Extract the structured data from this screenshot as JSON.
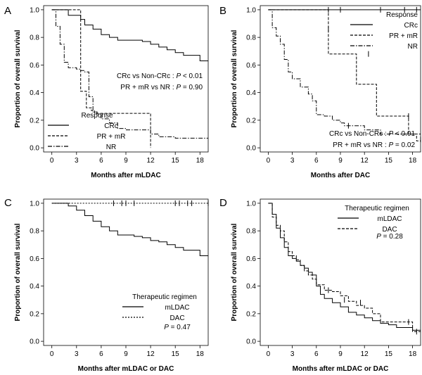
{
  "chart_data": [
    {
      "panel": "A",
      "type": "line",
      "title": "",
      "xlabel": "Months after mLDAC",
      "ylabel": "Proportion of overall survival",
      "xlim": [
        -1,
        19
      ],
      "ylim": [
        -0.03,
        1.03
      ],
      "xticks": [
        0,
        3,
        6,
        9,
        12,
        15,
        18
      ],
      "yticks": [
        0.0,
        0.2,
        0.4,
        0.6,
        0.8,
        1.0
      ],
      "ytick_labels": [
        "0.0",
        "0.2",
        "0.4",
        "0.6",
        "0.8",
        "1.0"
      ],
      "series": [
        {
          "name": "CRc",
          "style": "solid",
          "x": [
            0,
            2,
            3.5,
            4,
            5,
            6,
            7,
            8,
            9,
            10,
            11,
            12,
            13,
            14,
            15,
            16,
            18,
            19
          ],
          "y": [
            1.0,
            0.96,
            0.93,
            0.89,
            0.86,
            0.82,
            0.8,
            0.78,
            0.78,
            0.78,
            0.77,
            0.75,
            0.73,
            0.71,
            0.69,
            0.67,
            0.63,
            0.63
          ]
        },
        {
          "name": "PR + mR",
          "style": "dashed",
          "x": [
            0,
            3.2,
            3.5,
            4.2,
            4.8,
            5.2,
            12,
            12
          ],
          "y": [
            1.0,
            1.0,
            0.41,
            0.29,
            0.27,
            0.25,
            0.25,
            0.0
          ]
        },
        {
          "name": "NR",
          "style": "dashdot",
          "x": [
            0,
            0.5,
            1,
            1.5,
            2,
            3,
            3.5,
            4,
            4.5,
            5,
            5.5,
            6,
            7,
            8,
            9,
            12,
            13,
            15,
            19
          ],
          "y": [
            1.0,
            0.88,
            0.75,
            0.62,
            0.58,
            0.57,
            0.56,
            0.55,
            0.37,
            0.26,
            0.24,
            0.21,
            0.18,
            0.14,
            0.13,
            0.1,
            0.08,
            0.07,
            0.07
          ]
        }
      ],
      "censor_marks": [],
      "legend": {
        "title": "Response",
        "position": "bottom-left"
      },
      "annotations": [
        {
          "label": "CRc vs Non-CRc : ",
          "pvar": "P",
          "pval": " < 0.01"
        },
        {
          "label": "PR + mR vs NR : ",
          "pvar": "P",
          "pval": " = 0.90"
        }
      ]
    },
    {
      "panel": "B",
      "type": "line",
      "title": "",
      "xlabel": "Months after DAC",
      "ylabel": "Proportion of overall survival",
      "xlim": [
        -1,
        19
      ],
      "ylim": [
        -0.03,
        1.03
      ],
      "xticks": [
        0,
        3,
        6,
        9,
        12,
        15,
        18
      ],
      "yticks": [
        0.0,
        0.2,
        0.4,
        0.6,
        0.8,
        1.0
      ],
      "ytick_labels": [
        "0.0",
        "0.2",
        "0.4",
        "0.6",
        "0.8",
        "1.0"
      ],
      "series": [
        {
          "name": "CRc",
          "style": "solid",
          "x": [
            0,
            19
          ],
          "y": [
            1.0,
            1.0
          ]
        },
        {
          "name": "PR + mR",
          "style": "dashed",
          "x": [
            0,
            7.5,
            7.5,
            11,
            11,
            13.5,
            13.5,
            17.5,
            17.5,
            18.5,
            18.5,
            19
          ],
          "y": [
            1.0,
            1.0,
            0.68,
            0.68,
            0.46,
            0.46,
            0.23,
            0.23,
            0.1,
            0.1,
            0.05,
            0.05
          ]
        },
        {
          "name": "NR",
          "style": "dashdot",
          "x": [
            0,
            0.5,
            1,
            1.5,
            2,
            2.5,
            3,
            4,
            5,
            5.5,
            6,
            7,
            8,
            9,
            9.5,
            12,
            14,
            19
          ],
          "y": [
            1.0,
            0.87,
            0.81,
            0.75,
            0.64,
            0.55,
            0.5,
            0.44,
            0.39,
            0.34,
            0.24,
            0.23,
            0.2,
            0.18,
            0.16,
            0.13,
            0.1,
            0.1
          ]
        }
      ],
      "censor_marks": [
        {
          "series": "CRc",
          "x": [
            7.5,
            9,
            14,
            17,
            18.5
          ],
          "y": [
            1.0,
            1.0,
            1.0,
            1.0,
            1.0
          ]
        },
        {
          "series": "PR + mR",
          "x": [
            7.5,
            12.5,
            17.5,
            19
          ],
          "y": [
            0.86,
            0.68,
            0.23,
            0.06
          ]
        },
        {
          "series": "NR",
          "x": [
            10
          ],
          "y": [
            0.16
          ]
        }
      ],
      "legend": {
        "title": "Response",
        "position": "top-right"
      },
      "annotations": [
        {
          "label": "CRc vs Non-CRc : ",
          "pvar": "P",
          "pval": " < 0.01"
        },
        {
          "label": "PR + mR vs NR : ",
          "pvar": "P",
          "pval": " = 0.02"
        }
      ]
    },
    {
      "panel": "C",
      "type": "line",
      "title": "",
      "xlabel": "Months after mLDAC or DAC",
      "ylabel": "Proportion of overall survival",
      "xlim": [
        -1,
        19
      ],
      "ylim": [
        -0.03,
        1.03
      ],
      "xticks": [
        0,
        3,
        6,
        9,
        12,
        15,
        18
      ],
      "yticks": [
        0.0,
        0.2,
        0.4,
        0.6,
        0.8,
        1.0
      ],
      "ytick_labels": [
        "0.0",
        "0.2",
        "0.4",
        "0.6",
        "0.8",
        "1.0"
      ],
      "series": [
        {
          "name": "mLDAC",
          "style": "solid",
          "x": [
            0,
            2,
            3,
            4,
            5,
            6,
            7,
            8,
            9,
            10,
            11,
            12,
            13,
            14,
            15,
            16,
            18,
            19
          ],
          "y": [
            1.0,
            0.98,
            0.95,
            0.91,
            0.87,
            0.83,
            0.8,
            0.77,
            0.77,
            0.76,
            0.75,
            0.73,
            0.72,
            0.7,
            0.68,
            0.66,
            0.62,
            0.62
          ]
        },
        {
          "name": "DAC",
          "style": "dotted",
          "x": [
            0,
            19
          ],
          "y": [
            1.0,
            1.0
          ]
        }
      ],
      "censor_marks": [
        {
          "series": "DAC",
          "x": [
            7.5,
            8.5,
            9,
            10,
            15,
            15.5,
            16.5,
            17,
            19
          ],
          "y": [
            1.0,
            1.0,
            1.0,
            1.0,
            1.0,
            1.0,
            1.0,
            1.0,
            1.0
          ]
        }
      ],
      "legend": {
        "title": "Therapeutic regimen",
        "position": "bottom-right"
      },
      "annotations": [
        {
          "label": "",
          "pvar": "P",
          "pval": " = 0.47"
        }
      ]
    },
    {
      "panel": "D",
      "type": "line",
      "title": "",
      "xlabel": "Months after mLDAC or DAC",
      "ylabel": "Proportion of overall survival",
      "xlim": [
        -1,
        19
      ],
      "ylim": [
        -0.03,
        1.03
      ],
      "xticks": [
        0,
        3,
        6,
        9,
        12,
        15,
        18
      ],
      "yticks": [
        0.0,
        0.2,
        0.4,
        0.6,
        0.8,
        1.0
      ],
      "ytick_labels": [
        "0.0",
        "0.2",
        "0.4",
        "0.6",
        "0.8",
        "1.0"
      ],
      "series": [
        {
          "name": "mLDAC",
          "style": "solid",
          "x": [
            0,
            0.5,
            1,
            1.5,
            2,
            2.5,
            3,
            3.5,
            4,
            4.5,
            5,
            5.5,
            6,
            6.5,
            7,
            8,
            9,
            10,
            11,
            12,
            13,
            14,
            15,
            16,
            18,
            19
          ],
          "y": [
            1.0,
            0.92,
            0.82,
            0.75,
            0.68,
            0.62,
            0.6,
            0.58,
            0.55,
            0.53,
            0.5,
            0.48,
            0.4,
            0.34,
            0.31,
            0.28,
            0.25,
            0.21,
            0.19,
            0.17,
            0.15,
            0.13,
            0.12,
            0.1,
            0.08,
            0.08
          ]
        },
        {
          "name": "DAC",
          "style": "dashed",
          "x": [
            0,
            0.5,
            1,
            1.5,
            2,
            2.5,
            3,
            3.5,
            4,
            4.5,
            5,
            5.5,
            6,
            7,
            8,
            9,
            10,
            11,
            12,
            13,
            14,
            16,
            18,
            19
          ],
          "y": [
            1.0,
            0.9,
            0.84,
            0.8,
            0.72,
            0.65,
            0.62,
            0.59,
            0.55,
            0.51,
            0.48,
            0.45,
            0.41,
            0.37,
            0.36,
            0.33,
            0.29,
            0.26,
            0.24,
            0.2,
            0.14,
            0.14,
            0.07,
            0.07
          ]
        }
      ],
      "censor_marks": [
        {
          "series": "DAC",
          "x": [
            7.5,
            9.5,
            11.5,
            17.5,
            18.5
          ],
          "y": [
            0.37,
            0.3,
            0.28,
            0.14,
            0.07
          ]
        }
      ],
      "legend": {
        "title": "Therapeutic regimen",
        "position": "top-right"
      },
      "annotations": [
        {
          "label": "",
          "pvar": "P",
          "pval": " = 0.28"
        }
      ]
    }
  ]
}
